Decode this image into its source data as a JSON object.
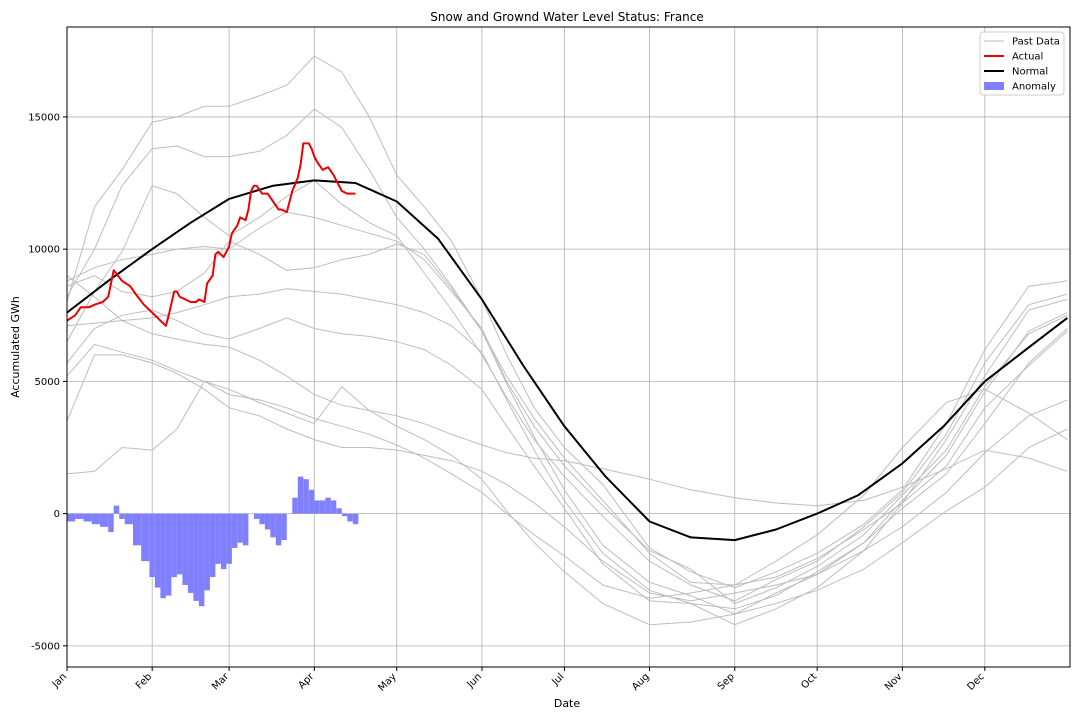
{
  "chart_data": {
    "type": "line",
    "title": "Snow and Grownd Water Level Status: France",
    "xlabel": "Date",
    "ylabel": "Accumulated GWh",
    "xlim": [
      0,
      365
    ],
    "ylim": [
      -5800,
      18400
    ],
    "x_ticks": [
      {
        "day": 0,
        "label": "Jan"
      },
      {
        "day": 31,
        "label": "Feb"
      },
      {
        "day": 59,
        "label": "Mar"
      },
      {
        "day": 90,
        "label": "Apr"
      },
      {
        "day": 120,
        "label": "May"
      },
      {
        "day": 151,
        "label": "Jun"
      },
      {
        "day": 181,
        "label": "Jul"
      },
      {
        "day": 212,
        "label": "Aug"
      },
      {
        "day": 243,
        "label": "Sep"
      },
      {
        "day": 273,
        "label": "Oct"
      },
      {
        "day": 304,
        "label": "Nov"
      },
      {
        "day": 334,
        "label": "Dec"
      }
    ],
    "y_ticks": [
      -5000,
      0,
      5000,
      10000,
      15000
    ],
    "grid": true,
    "legend_position": "top-right",
    "legend": [
      {
        "name": "Past Data",
        "color": "#bdbdbd",
        "kind": "line"
      },
      {
        "name": "Actual",
        "color": "#ee0000",
        "kind": "line"
      },
      {
        "name": "Normal",
        "color": "#000000",
        "kind": "line"
      },
      {
        "name": "Anomaly",
        "color": "#7f7fff",
        "kind": "patch"
      }
    ],
    "colors": {
      "past": "#bdbdbd",
      "actual": "#ee0000",
      "normal": "#000000",
      "anomaly": "#8080ff",
      "grid": "#b0b0b0"
    },
    "normal": {
      "x": [
        0,
        15,
        31,
        45,
        59,
        75,
        90,
        105,
        120,
        135,
        151,
        166,
        181,
        196,
        212,
        227,
        243,
        258,
        273,
        288,
        304,
        319,
        334,
        349,
        364
      ],
      "y": [
        7600,
        8800,
        10000,
        11000,
        11900,
        12400,
        12600,
        12500,
        11800,
        10400,
        8100,
        5600,
        3300,
        1400,
        -300,
        -900,
        -1000,
        -600,
        0,
        700,
        1900,
        3300,
        5000,
        6200,
        7400
      ]
    },
    "actual": {
      "x": [
        0,
        3,
        5,
        8,
        10,
        13,
        15,
        17,
        20,
        23,
        25,
        28,
        31,
        34,
        36,
        37,
        39,
        40,
        41,
        43,
        45,
        47,
        48,
        50,
        51,
        53,
        54,
        55,
        57,
        59,
        60,
        62,
        63,
        65,
        66,
        67,
        68,
        69,
        71,
        73,
        75,
        77,
        78,
        80,
        82,
        84,
        85,
        86,
        88,
        89,
        90,
        91,
        93,
        95,
        97,
        98,
        100,
        102,
        104,
        105
      ],
      "y": [
        7300,
        7500,
        7800,
        7800,
        7900,
        8000,
        8200,
        9200,
        8800,
        8600,
        8300,
        7900,
        7600,
        7300,
        7100,
        7500,
        8400,
        8400,
        8200,
        8100,
        8000,
        8000,
        8100,
        8000,
        8700,
        9000,
        9800,
        9900,
        9700,
        10100,
        10600,
        10900,
        11200,
        11100,
        11500,
        12200,
        12400,
        12400,
        12100,
        12100,
        11800,
        11500,
        11500,
        11400,
        12200,
        12700,
        13200,
        14000,
        14000,
        13800,
        13500,
        13300,
        13000,
        13100,
        12800,
        12600,
        12200,
        12100,
        12100,
        12100
      ]
    },
    "anomaly": {
      "x": [
        0,
        3,
        6,
        9,
        12,
        15,
        17,
        19,
        21,
        24,
        27,
        30,
        32,
        34,
        36,
        38,
        40,
        42,
        44,
        46,
        48,
        50,
        52,
        54,
        56,
        58,
        60,
        62,
        64,
        66,
        68,
        70,
        72,
        74,
        76,
        78,
        80,
        82,
        84,
        86,
        88,
        90,
        92,
        94,
        96,
        98,
        100,
        102,
        104
      ],
      "y": [
        -300,
        -200,
        -300,
        -400,
        -500,
        -700,
        300,
        -200,
        -400,
        -1200,
        -1800,
        -2400,
        -2800,
        -3200,
        -3100,
        -2400,
        -2300,
        -2700,
        -3000,
        -3300,
        -3500,
        -2900,
        -2400,
        -1900,
        -2100,
        -1900,
        -1300,
        -1100,
        -1200,
        0,
        -200,
        -400,
        -600,
        -900,
        -1200,
        -1000,
        0,
        600,
        1400,
        1300,
        900,
        500,
        500,
        600,
        500,
        200,
        -100,
        -300,
        -400
      ]
    },
    "past_series": [
      {
        "x": [
          0,
          10,
          20,
          31,
          40,
          50,
          59,
          70,
          80,
          90,
          100,
          110,
          120,
          130,
          140,
          151,
          160,
          170,
          181,
          195,
          212,
          227,
          243,
          258,
          273,
          290,
          304,
          320,
          334,
          350,
          364
        ],
        "y": [
          8000,
          11600,
          13000,
          14800,
          15000,
          15400,
          15400,
          15800,
          16200,
          17300,
          16700,
          15000,
          12800,
          11600,
          10300,
          8100,
          6000,
          4000,
          2500,
          1100,
          -1300,
          -2200,
          -2800,
          -2200,
          -1500,
          -400,
          900,
          3400,
          6200,
          8600,
          8800
        ]
      },
      {
        "x": [
          0,
          10,
          20,
          31,
          40,
          50,
          59,
          70,
          80,
          90,
          100,
          110,
          120,
          130,
          140,
          151,
          160,
          170,
          181,
          195,
          212,
          227,
          243,
          258,
          273,
          290,
          304,
          320,
          334,
          350,
          364
        ],
        "y": [
          8200,
          10000,
          12400,
          13800,
          13900,
          13500,
          13500,
          13700,
          14300,
          15300,
          14600,
          13000,
          11200,
          10000,
          8600,
          6900,
          5200,
          3600,
          2100,
          500,
          -1500,
          -2600,
          -2700,
          -2400,
          -1700,
          -600,
          400,
          2800,
          5200,
          7700,
          8100
        ]
      },
      {
        "x": [
          0,
          10,
          20,
          31,
          40,
          50,
          59,
          70,
          80,
          90,
          100,
          110,
          120,
          130,
          140,
          151,
          160,
          170,
          181,
          195,
          212,
          227,
          243,
          258,
          273,
          290,
          304,
          320,
          334,
          350,
          364
        ],
        "y": [
          6500,
          8400,
          9900,
          12400,
          12100,
          11200,
          10500,
          11200,
          12000,
          12600,
          11700,
          11000,
          10500,
          9100,
          7700,
          6000,
          4400,
          2800,
          1400,
          -100,
          -1800,
          -2700,
          -3300,
          -2500,
          -1800,
          -500,
          800,
          3000,
          5700,
          7900,
          8300
        ]
      },
      {
        "x": [
          0,
          10,
          20,
          31,
          40,
          50,
          59,
          70,
          80,
          90,
          100,
          110,
          120,
          130,
          140,
          151,
          160,
          170,
          181,
          195,
          212,
          227,
          243,
          258,
          273,
          290,
          304,
          320,
          334,
          350,
          364
        ],
        "y": [
          8800,
          9300,
          9600,
          9800,
          10000,
          10100,
          10000,
          10800,
          11400,
          11200,
          10900,
          10600,
          10300,
          9600,
          8400,
          7000,
          5000,
          3300,
          1800,
          300,
          -1400,
          -2100,
          -3400,
          -2800,
          -2000,
          -800,
          700,
          2400,
          4800,
          6800,
          7500
        ]
      },
      {
        "x": [
          0,
          10,
          20,
          31,
          40,
          50,
          59,
          70,
          80,
          90,
          100,
          110,
          120,
          130,
          140,
          151,
          160,
          170,
          181,
          195,
          212,
          227,
          243,
          258,
          273,
          290,
          304,
          320,
          334,
          350,
          364
        ],
        "y": [
          8600,
          9000,
          8400,
          8200,
          8400,
          9100,
          10300,
          9800,
          9200,
          9300,
          9600,
          9800,
          10200,
          9800,
          8500,
          6900,
          4900,
          2900,
          900,
          -1200,
          -2600,
          -3100,
          -3800,
          -3000,
          -2300,
          -1100,
          500,
          2200,
          4600,
          6900,
          7600
        ]
      },
      {
        "x": [
          0,
          10,
          20,
          31,
          40,
          50,
          59,
          70,
          80,
          90,
          100,
          110,
          120,
          130,
          140,
          151,
          160,
          170,
          181,
          195,
          212,
          227,
          243,
          258,
          273,
          290,
          304,
          320,
          334,
          350,
          364
        ],
        "y": [
          7100,
          7200,
          7300,
          7400,
          7600,
          7900,
          8200,
          8300,
          8500,
          8400,
          8300,
          8100,
          7900,
          7600,
          7100,
          6100,
          4300,
          2400,
          500,
          -1500,
          -2900,
          -3400,
          -4200,
          -3600,
          -2800,
          -1400,
          400,
          1800,
          4000,
          5600,
          6900
        ]
      },
      {
        "x": [
          0,
          10,
          20,
          31,
          40,
          50,
          59,
          70,
          80,
          90,
          100,
          110,
          120,
          130,
          140,
          151,
          160,
          170,
          181,
          195,
          212,
          227,
          243,
          258,
          273,
          290,
          304,
          320,
          334,
          350,
          364
        ],
        "y": [
          5700,
          7000,
          7500,
          7700,
          7300,
          6800,
          6600,
          7000,
          7400,
          7000,
          6800,
          6700,
          6500,
          6200,
          5600,
          4700,
          3300,
          1800,
          200,
          -1900,
          -3300,
          -3400,
          -3600,
          -3100,
          -2200,
          -1100,
          200,
          1500,
          3400,
          5700,
          7000
        ]
      },
      {
        "x": [
          0,
          10,
          20,
          31,
          40,
          50,
          59,
          70,
          80,
          90,
          100,
          110,
          120,
          130,
          140,
          151,
          160,
          170,
          181,
          195,
          212,
          227,
          243,
          258,
          273,
          290,
          304,
          320,
          334,
          350,
          364
        ],
        "y": [
          5200,
          6400,
          6100,
          5800,
          5400,
          5000,
          4700,
          4200,
          3800,
          3400,
          4800,
          3900,
          3300,
          2800,
          2200,
          1300,
          100,
          -1100,
          -2200,
          -3400,
          -4200,
          -4100,
          -3800,
          -3400,
          -2900,
          -2100,
          -1100,
          100,
          1000,
          2500,
          3200
        ]
      },
      {
        "x": [
          0,
          10,
          20,
          31,
          40,
          50,
          59,
          70,
          80,
          90,
          100,
          110,
          120,
          130,
          140,
          151,
          160,
          170,
          181,
          195,
          212,
          227,
          243,
          258,
          273,
          290,
          304,
          320,
          334,
          350,
          364
        ],
        "y": [
          3500,
          6000,
          6000,
          5700,
          5300,
          4700,
          4000,
          3700,
          3200,
          2800,
          2500,
          2500,
          2400,
          2200,
          2000,
          1600,
          1100,
          400,
          -500,
          -1800,
          -3000,
          -3300,
          -3000,
          -2700,
          -2300,
          -1400,
          -500,
          800,
          2300,
          3700,
          4300
        ]
      },
      {
        "x": [
          0,
          10,
          20,
          31,
          40,
          50,
          59,
          70,
          80,
          90,
          100,
          110,
          120,
          130,
          140,
          151,
          160,
          170,
          181,
          195,
          212,
          227,
          243,
          258,
          273,
          290,
          304,
          320,
          334,
          350,
          364
        ],
        "y": [
          1500,
          1600,
          2500,
          2400,
          3200,
          5000,
          4500,
          4300,
          4000,
          3600,
          3300,
          3000,
          2600,
          2100,
          1500,
          800,
          0,
          -800,
          -1600,
          -2700,
          -3200,
          -3000,
          -2700,
          -1800,
          -800,
          700,
          2500,
          4200,
          4700,
          3800,
          2800
        ]
      },
      {
        "x": [
          0,
          10,
          20,
          31,
          40,
          50,
          59,
          70,
          80,
          90,
          100,
          110,
          120,
          130,
          140,
          151,
          160,
          170,
          181,
          195,
          212,
          227,
          243,
          258,
          273,
          290,
          304,
          320,
          334,
          350,
          364
        ],
        "y": [
          9000,
          8200,
          7300,
          6800,
          6600,
          6400,
          6300,
          5800,
          5200,
          4500,
          4100,
          3900,
          3700,
          3400,
          3000,
          2600,
          2300,
          2100,
          2000,
          1700,
          1300,
          900,
          600,
          400,
          300,
          500,
          1000,
          1700,
          2400,
          2100,
          1600
        ]
      }
    ]
  }
}
